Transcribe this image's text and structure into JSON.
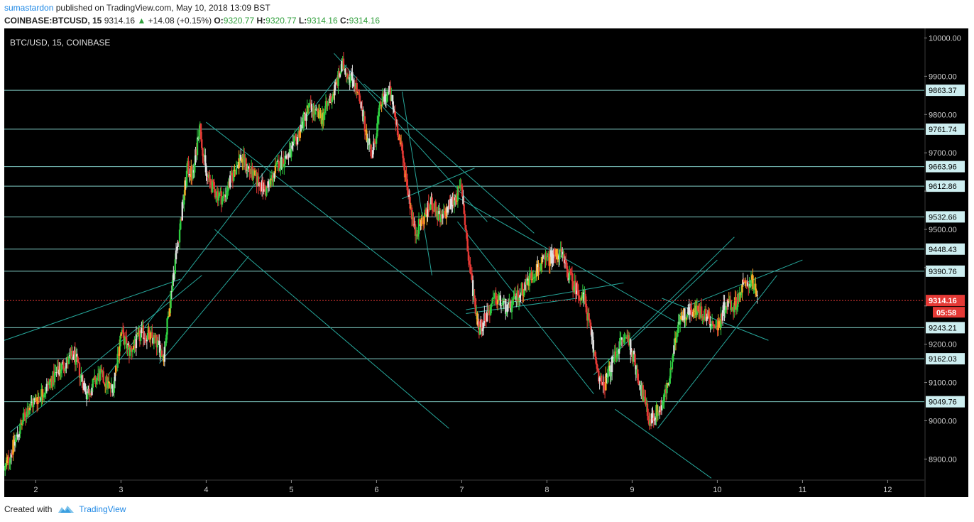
{
  "header": {
    "author": "sumastardon",
    "published_text": "published on TradingView.com, May 10, 2018 13:09 BST",
    "symbol": "COINBASE:BTCUSD, 15",
    "last": "9314.16",
    "change": "+14.08 (+0.15%)",
    "o_label": "O:",
    "o": "9320.77",
    "h_label": "H:",
    "h": "9320.77",
    "l_label": "L:",
    "l": "9314.16",
    "c_label": "C:",
    "c": "9314.16"
  },
  "footer": {
    "created_with": "Created with",
    "brand": "TradingView",
    "logo": "tradingview-logo-icon"
  },
  "colors": {
    "background": "#000000",
    "up": "#2ecc40",
    "down": "#e53935",
    "neutral": "#e0e0e0",
    "trendline": "#26a69a",
    "level": "#80cbc4",
    "price_line": "#e53935"
  },
  "chart_data": {
    "type": "candlestick",
    "title": "BTC/USD, 15, COINBASE",
    "x_ticks": [
      "2",
      "3",
      "4",
      "5",
      "6",
      "7",
      "8",
      "9",
      "10",
      "11",
      "12"
    ],
    "x_range": [
      1.63,
      12.43
    ],
    "y_range": [
      8845,
      10025
    ],
    "y_ticks": [
      8900,
      9000,
      9100,
      9200,
      9300,
      9400,
      9500,
      9600,
      9700,
      9800,
      9900,
      10000
    ],
    "y_tick_labels": [
      "8900.00",
      "9000.00",
      "9100.00",
      "9200.00",
      "",
      "",
      "9500.00",
      "",
      "9700.00",
      "9800.00",
      "9900.00",
      "10000.00"
    ],
    "levels": [
      9863.37,
      9761.74,
      9663.96,
      9612.86,
      9532.66,
      9448.43,
      9390.76,
      9243.21,
      9162.03,
      9049.76
    ],
    "current_price": 9314.16,
    "current_price_label": "9314.16",
    "countdown": "05:58",
    "path": [
      [
        1.63,
        8870
      ],
      [
        1.9,
        9030
      ],
      [
        2.1,
        9080
      ],
      [
        2.3,
        9140
      ],
      [
        2.45,
        9170
      ],
      [
        2.6,
        9070
      ],
      [
        2.75,
        9120
      ],
      [
        2.9,
        9080
      ],
      [
        3.0,
        9230
      ],
      [
        3.1,
        9180
      ],
      [
        3.25,
        9230
      ],
      [
        3.4,
        9210
      ],
      [
        3.5,
        9170
      ],
      [
        3.6,
        9360
      ],
      [
        3.7,
        9520
      ],
      [
        3.78,
        9660
      ],
      [
        3.85,
        9640
      ],
      [
        3.92,
        9780
      ],
      [
        4.0,
        9640
      ],
      [
        4.1,
        9600
      ],
      [
        4.2,
        9580
      ],
      [
        4.4,
        9690
      ],
      [
        4.55,
        9640
      ],
      [
        4.7,
        9600
      ],
      [
        4.85,
        9670
      ],
      [
        5.0,
        9700
      ],
      [
        5.1,
        9760
      ],
      [
        5.2,
        9820
      ],
      [
        5.35,
        9790
      ],
      [
        5.5,
        9860
      ],
      [
        5.6,
        9930
      ],
      [
        5.75,
        9880
      ],
      [
        5.85,
        9780
      ],
      [
        5.95,
        9690
      ],
      [
        6.05,
        9830
      ],
      [
        6.15,
        9860
      ],
      [
        6.25,
        9760
      ],
      [
        6.35,
        9630
      ],
      [
        6.45,
        9490
      ],
      [
        6.55,
        9530
      ],
      [
        6.65,
        9570
      ],
      [
        6.75,
        9520
      ],
      [
        6.85,
        9560
      ],
      [
        7.0,
        9610
      ],
      [
        7.08,
        9420
      ],
      [
        7.2,
        9240
      ],
      [
        7.4,
        9320
      ],
      [
        7.55,
        9290
      ],
      [
        7.7,
        9340
      ],
      [
        7.85,
        9390
      ],
      [
        8.0,
        9420
      ],
      [
        8.15,
        9440
      ],
      [
        8.3,
        9360
      ],
      [
        8.45,
        9310
      ],
      [
        8.55,
        9180
      ],
      [
        8.65,
        9080
      ],
      [
        8.75,
        9140
      ],
      [
        8.85,
        9200
      ],
      [
        8.95,
        9220
      ],
      [
        9.1,
        9090
      ],
      [
        9.2,
        9000
      ],
      [
        9.35,
        9040
      ],
      [
        9.45,
        9120
      ],
      [
        9.55,
        9270
      ],
      [
        9.7,
        9290
      ],
      [
        9.85,
        9280
      ],
      [
        10.0,
        9240
      ],
      [
        10.1,
        9310
      ],
      [
        10.2,
        9300
      ],
      [
        10.3,
        9350
      ],
      [
        10.4,
        9370
      ],
      [
        10.47,
        9315
      ]
    ],
    "trendlines": [
      [
        [
          1.63,
          9210
        ],
        [
          3.7,
          9370
        ]
      ],
      [
        [
          1.7,
          8970
        ],
        [
          3.95,
          9380
        ]
      ],
      [
        [
          2.85,
          9120
        ],
        [
          5.65,
          9930
        ]
      ],
      [
        [
          3.45,
          9150
        ],
        [
          4.5,
          9430
        ]
      ],
      [
        [
          4.1,
          9500
        ],
        [
          6.85,
          8980
        ]
      ],
      [
        [
          4.0,
          9780
        ],
        [
          7.2,
          9230
        ]
      ],
      [
        [
          5.5,
          9960
        ],
        [
          7.3,
          9520
        ]
      ],
      [
        [
          5.85,
          9880
        ],
        [
          7.85,
          9490
        ]
      ],
      [
        [
          6.3,
          9860
        ],
        [
          6.65,
          9380
        ]
      ],
      [
        [
          6.9,
          9590
        ],
        [
          9.5,
          9260
        ]
      ],
      [
        [
          6.95,
          9520
        ],
        [
          8.55,
          9070
        ]
      ],
      [
        [
          7.05,
          9290
        ],
        [
          8.9,
          9360
        ]
      ],
      [
        [
          8.55,
          9120
        ],
        [
          10.2,
          9480
        ]
      ],
      [
        [
          8.8,
          9030
        ],
        [
          9.93,
          8850
        ]
      ],
      [
        [
          9.0,
          9210
        ],
        [
          10.0,
          9420
        ]
      ],
      [
        [
          9.3,
          8980
        ],
        [
          10.7,
          9380
        ]
      ],
      [
        [
          9.65,
          9300
        ],
        [
          11.0,
          9420
        ]
      ],
      [
        [
          9.35,
          9320
        ],
        [
          10.6,
          9210
        ]
      ],
      [
        [
          6.3,
          9580
        ],
        [
          7.15,
          9660
        ]
      ],
      [
        [
          7.05,
          9280
        ],
        [
          8.35,
          9320
        ]
      ]
    ]
  }
}
